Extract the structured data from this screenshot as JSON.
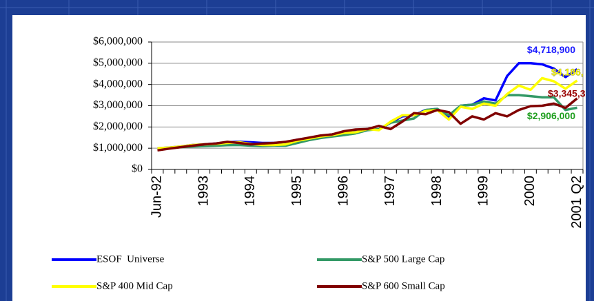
{
  "chart_data": {
    "type": "line",
    "categories": [
      "Jun-92",
      null,
      null,
      null,
      "1993",
      null,
      null,
      null,
      "1994",
      null,
      null,
      null,
      "1995",
      null,
      null,
      null,
      "1996",
      null,
      null,
      null,
      "1997",
      null,
      null,
      null,
      "1998",
      null,
      null,
      null,
      "1999",
      null,
      null,
      null,
      "2000",
      null,
      null,
      null,
      "2001 Q2"
    ],
    "series": [
      {
        "name": "ESOF  Universe",
        "color": "#0000ff",
        "value_label": "$4,718,900",
        "label_color": "#1a1aff",
        "values": [
          1000000,
          1030000,
          1080000,
          1150000,
          1180000,
          1220000,
          1280000,
          1300000,
          1280000,
          1250000,
          1250000,
          1280000,
          1400000,
          1480000,
          1580000,
          1650000,
          1750000,
          1800000,
          1900000,
          1880000,
          2200000,
          2500000,
          2550000,
          2800000,
          2850000,
          2450000,
          3000000,
          3050000,
          3350000,
          3250000,
          4400000,
          5000000,
          5000000,
          4950000,
          4750000,
          4350000,
          4718900
        ]
      },
      {
        "name": "S&P 500 Large Cap",
        "color": "#339966",
        "value_label": "$2,906,000",
        "label_color": "#1e9e1e",
        "values": [
          980000,
          1020000,
          1050000,
          1080000,
          1100000,
          1120000,
          1140000,
          1150000,
          1120000,
          1100000,
          1120000,
          1120000,
          1250000,
          1380000,
          1480000,
          1550000,
          1620000,
          1700000,
          1850000,
          1900000,
          2200000,
          2300000,
          2400000,
          2800000,
          2850000,
          2550000,
          3000000,
          3050000,
          3200000,
          3100000,
          3500000,
          3500000,
          3450000,
          3400000,
          3400000,
          2800000,
          2906000
        ]
      },
      {
        "name": "S&P 400 Mid Cap",
        "color": "#ffff00",
        "value_label": "$4,186,",
        "label_color": "#ffff00",
        "values": [
          1000000,
          1030000,
          1080000,
          1150000,
          1180000,
          1200000,
          1250000,
          1280000,
          1200000,
          1150000,
          1150000,
          1180000,
          1350000,
          1450000,
          1550000,
          1620000,
          1720000,
          1750000,
          1900000,
          1850000,
          2250000,
          2550000,
          2550000,
          2750000,
          2800000,
          2350000,
          2950000,
          2850000,
          3100000,
          3000000,
          3550000,
          3950000,
          3750000,
          4300000,
          4150000,
          3800000,
          4186000
        ]
      },
      {
        "name": "S&P 600 Small Cap",
        "color": "#800000",
        "value_label": "$3,345,3",
        "label_color": "#990000",
        "values": [
          900000,
          980000,
          1050000,
          1120000,
          1180000,
          1220000,
          1300000,
          1250000,
          1180000,
          1220000,
          1250000,
          1300000,
          1400000,
          1500000,
          1600000,
          1650000,
          1800000,
          1880000,
          1900000,
          2050000,
          1900000,
          2250000,
          2650000,
          2600000,
          2800000,
          2700000,
          2150000,
          2500000,
          2350000,
          2650000,
          2500000,
          2800000,
          2980000,
          3000000,
          3100000,
          2900000,
          3345300
        ]
      }
    ],
    "ylim": [
      0,
      6000000
    ],
    "yticks": [
      {
        "value": 0,
        "label": "$0"
      },
      {
        "value": 1000000,
        "label": "$1,000,000"
      },
      {
        "value": 2000000,
        "label": "$2,000,000"
      },
      {
        "value": 3000000,
        "label": "$3,000,000"
      },
      {
        "value": 4000000,
        "label": "$4,000,000"
      },
      {
        "value": 5000000,
        "label": "$5,000,000"
      },
      {
        "value": 6000000,
        "label": "$6,000,000"
      }
    ],
    "grid": true
  }
}
